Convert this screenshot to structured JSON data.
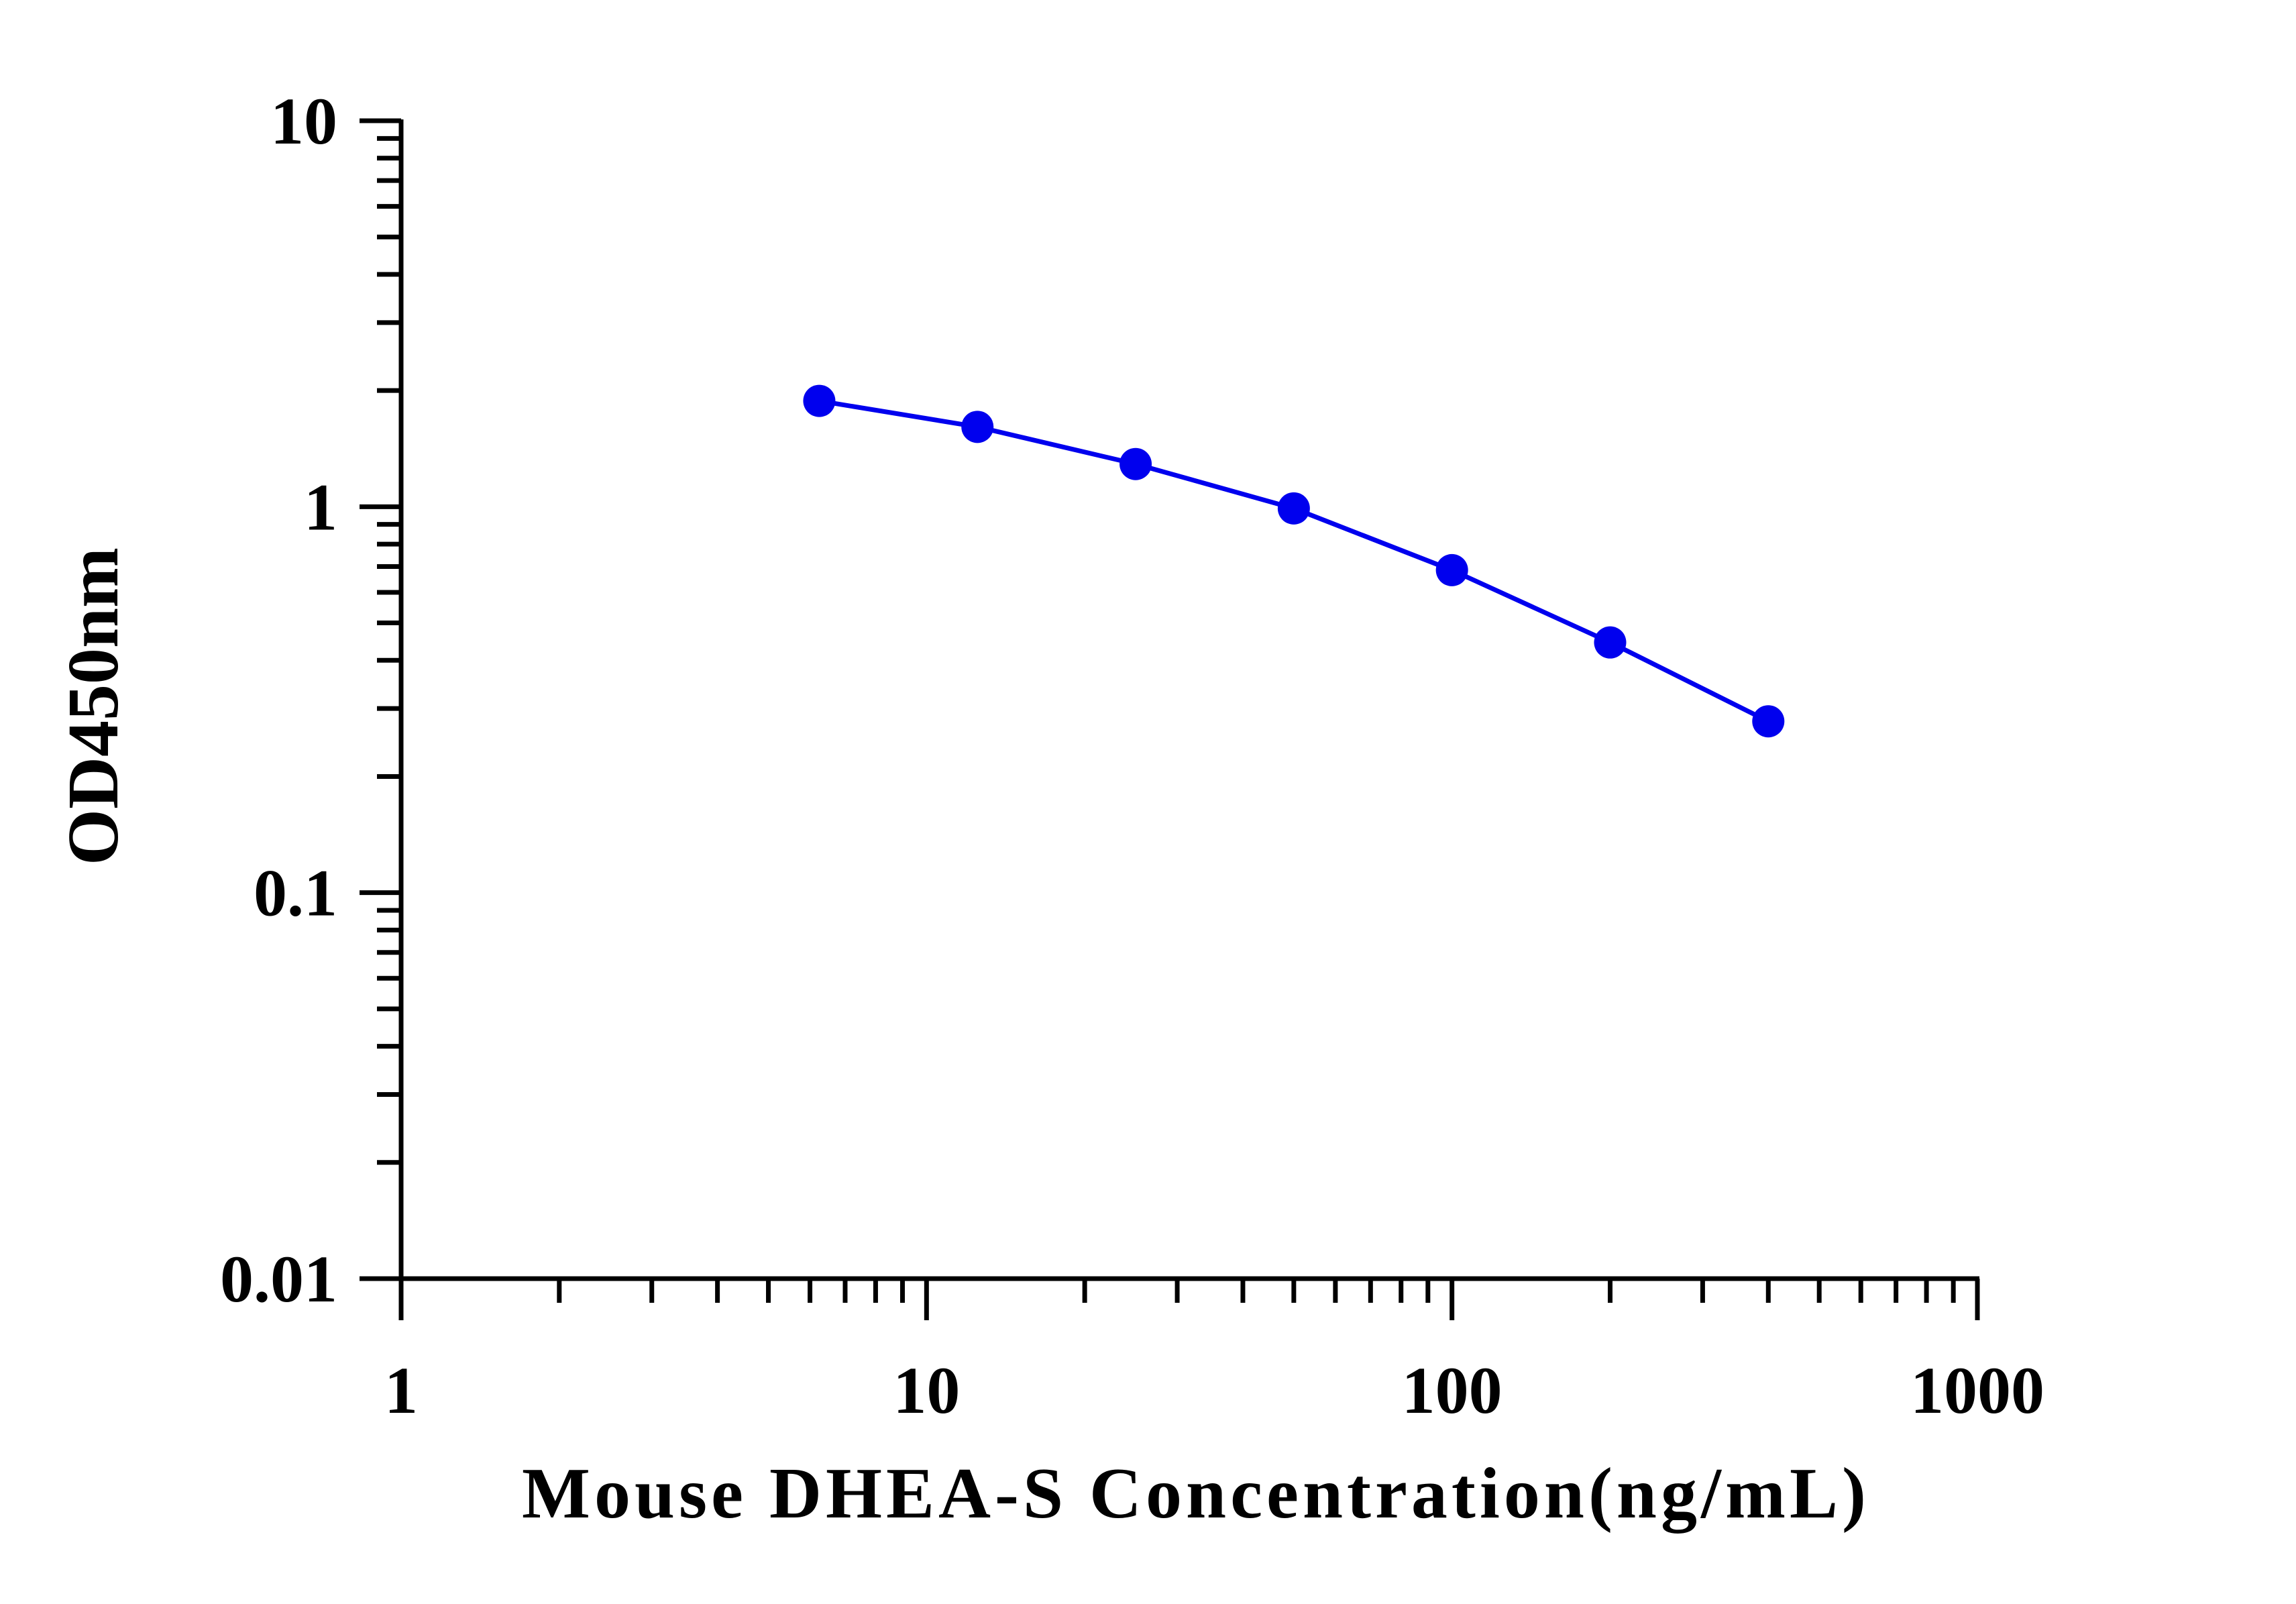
{
  "chart_data": {
    "type": "line",
    "title": "",
    "xlabel": "Mouse DHEA-S Concentration(ng/mL)",
    "ylabel": "OD450nm",
    "x_scale": "log",
    "y_scale": "log",
    "xlim": [
      1,
      1000
    ],
    "ylim": [
      0.01,
      10
    ],
    "x_ticks": [
      "1",
      "10",
      "100",
      "1000"
    ],
    "y_ticks": [
      "0.01",
      "0.1",
      "1",
      "10"
    ],
    "grid": false,
    "legend": "none",
    "series": [
      {
        "color": "#0000ee",
        "marker": "circle",
        "points": [
          {
            "x": 6.25,
            "y": 1.88
          },
          {
            "x": 12.5,
            "y": 1.61
          },
          {
            "x": 25,
            "y": 1.29
          },
          {
            "x": 50,
            "y": 0.99
          },
          {
            "x": 100,
            "y": 0.685
          },
          {
            "x": 200,
            "y": 0.445
          },
          {
            "x": 400,
            "y": 0.278
          }
        ]
      }
    ]
  }
}
